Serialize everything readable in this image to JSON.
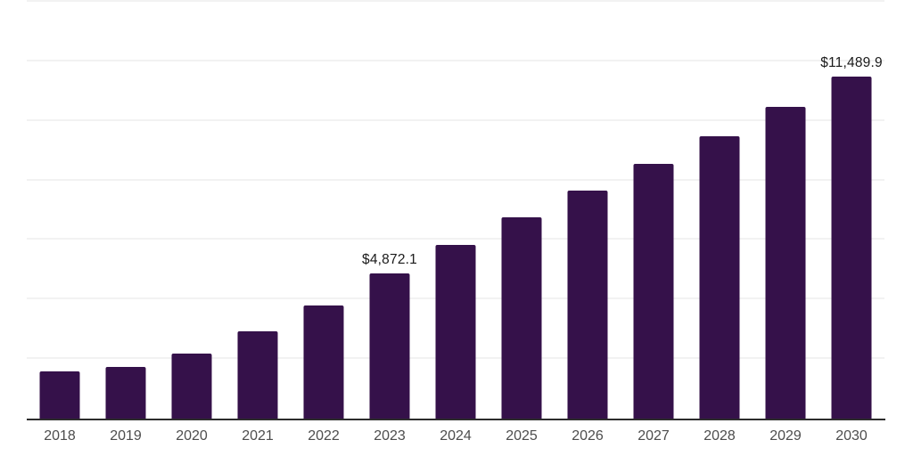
{
  "chart": {
    "background_color": "#ffffff",
    "bar_color": "#35114a",
    "gridline_color": "#f2f2f2",
    "axis_line_color": "#2d2d2d",
    "tick_label_color": "#4d4d4d",
    "data_label_color": "#1a1a1a"
  },
  "chart_data": {
    "type": "bar",
    "title": "",
    "xlabel": "",
    "ylabel": "",
    "categories": [
      "2018",
      "2019",
      "2020",
      "2021",
      "2022",
      "2023",
      "2024",
      "2025",
      "2026",
      "2027",
      "2028",
      "2029",
      "2030"
    ],
    "values": [
      1575,
      1725,
      2190,
      2930,
      3790,
      4872.1,
      5830,
      6750,
      7670,
      8550,
      9475,
      10470,
      11489.9
    ],
    "annotations": [
      {
        "category": "2023",
        "text": "$4,872.1"
      },
      {
        "category": "2030",
        "text": "$11,489.9"
      }
    ],
    "ylim": [
      0,
      14000
    ],
    "gridline_step": 2000,
    "grid": "horizontal",
    "legend": "none",
    "y_tick_labels_shown": false
  }
}
